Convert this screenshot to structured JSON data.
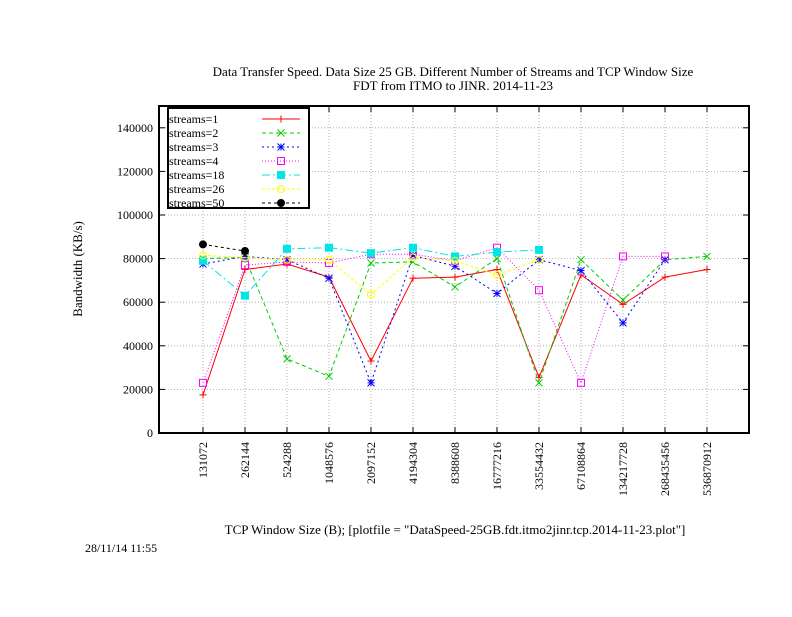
{
  "chart_data": {
    "type": "line",
    "title": "Data Transfer Speed. Data Size 25 GB. Different Number of Streams and TCP Window Size",
    "subtitle": "FDT from ITMO to JINR. 2014-11-23",
    "xlabel": "TCP Window Size (B); [plotfile = \"DataSpeed-25GB.fdt.itmo2jinr.tcp.2014-11-23.plot\"]",
    "ylabel": "Bandwidth (KB/s)",
    "timestamp": "28/11/14 11:55",
    "categories": [
      "131072",
      "262144",
      "524288",
      "1048576",
      "2097152",
      "4194304",
      "8388608",
      "16777216",
      "33554432",
      "67108864",
      "134217728",
      "268435456",
      "536870912"
    ],
    "ylim": [
      0,
      150000
    ],
    "yticks": [
      0,
      20000,
      40000,
      60000,
      80000,
      100000,
      120000,
      140000
    ],
    "ytick_labels": [
      "0",
      "20000",
      "40000",
      "60000",
      "80000",
      "100000",
      "120000",
      "140000"
    ],
    "grid": true,
    "legend_position": "top-left",
    "series": [
      {
        "name": "streams=1",
        "color": "#ff0000",
        "dash": "",
        "marker": "plus",
        "values": [
          17500,
          75000,
          77500,
          71500,
          33000,
          71000,
          71500,
          75000,
          25500,
          72500,
          59000,
          71500,
          75000
        ]
      },
      {
        "name": "streams=2",
        "color": "#00cc00",
        "dash": "4,3",
        "marker": "cross",
        "values": [
          80000,
          80500,
          34000,
          26000,
          78000,
          78500,
          67000,
          80000,
          23000,
          79500,
          61000,
          79500,
          81000
        ]
      },
      {
        "name": "streams=3",
        "color": "#0000ff",
        "dash": "2,3",
        "marker": "star",
        "values": [
          77500,
          81000,
          79500,
          71000,
          23000,
          81500,
          76500,
          64000,
          79500,
          74500,
          50500,
          79500,
          null
        ]
      },
      {
        "name": "streams=4",
        "color": "#ff00ff",
        "dash": "1,2",
        "marker": "square",
        "values": [
          23000,
          77000,
          78500,
          78000,
          82000,
          82000,
          79000,
          85000,
          65500,
          23000,
          81000,
          81000,
          null
        ]
      },
      {
        "name": "streams=18",
        "color": "#00e5e5",
        "dash": "8,3,2,3",
        "marker": "filled-square",
        "values": [
          79000,
          63000,
          84500,
          85000,
          82500,
          85000,
          81000,
          83000,
          84000,
          null,
          null,
          null,
          null
        ]
      },
      {
        "name": "streams=26",
        "color": "#ffff00",
        "dash": "3,2",
        "marker": "circle",
        "values": [
          81500,
          80500,
          79500,
          79500,
          63500,
          80500,
          79000,
          72500,
          79500,
          null,
          null,
          null,
          null
        ]
      },
      {
        "name": "streams=50",
        "color": "#000000",
        "dash": "3,3",
        "marker": "filled-circle",
        "values": [
          86500,
          83500,
          null,
          null,
          null,
          null,
          null,
          null,
          null,
          null,
          null,
          null,
          null
        ]
      }
    ]
  }
}
